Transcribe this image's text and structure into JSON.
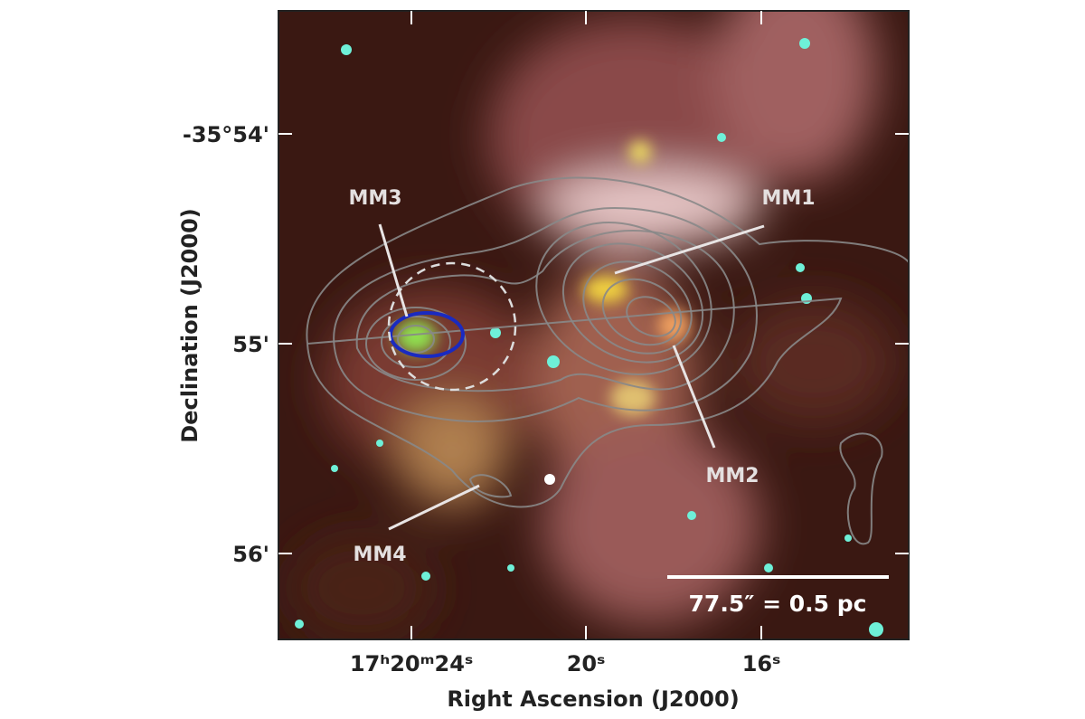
{
  "axes": {
    "x_label": "Right Ascension (J2000)",
    "y_label": "Declination (J2000)",
    "x_ticks": [
      "17ʰ20ᵐ24ˢ",
      "20ˢ",
      "16ˢ"
    ],
    "y_ticks": [
      "-35°54'",
      "55'",
      "56'"
    ]
  },
  "sources": [
    "MM1",
    "MM2",
    "MM3",
    "MM4"
  ],
  "scale_bar": "77.5″ = 0.5 pc"
}
